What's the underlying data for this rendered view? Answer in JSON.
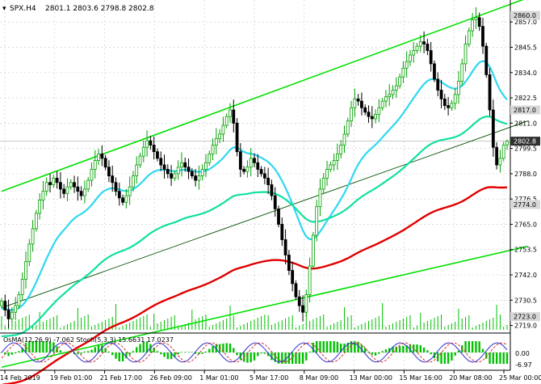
{
  "header": {
    "symbol": "SPX.H4",
    "ohlc": "2801.1 2803.6 2798.8 2802.8"
  },
  "oscillator": {
    "label": "OsMA(12,26,9) -7.062  Stoch(5,3,3) 15.6631 17.0237",
    "tick_labels": [
      "0.00",
      "-6.97"
    ]
  },
  "colors": {
    "background": "#ffffff",
    "grid": "#c8c8c8",
    "bull_candle": "#00a000",
    "bear_candle": "#000000",
    "channel_lines": "#00e000",
    "trend_line": "#005000",
    "ema_fast": "#30d8f0",
    "ema_mid": "#10e0a0",
    "ema_slow": "#e00000",
    "price_box": "#303030",
    "price_box_text": "#ffffff",
    "level_box": "#d8d8d8",
    "volume": "#00c000",
    "osma_hist": "#00c000",
    "stoch_main": "#3030d0",
    "stoch_signal": "#d03030"
  },
  "chart_data": {
    "type": "candlestick",
    "title": "SPX.H4",
    "ohlc_last": {
      "open": 2801.1,
      "high": 2803.6,
      "low": 2798.8,
      "close": 2802.8
    },
    "y_ticks": [
      2857.0,
      2845.5,
      2834.0,
      2822.5,
      2811.0,
      2799.5,
      2788.0,
      2776.5,
      2765.0,
      2753.5,
      2742.0,
      2730.5,
      2719.0
    ],
    "y_range": [
      2717.0,
      2867.0
    ],
    "x_ticks": [
      "14 Feb 2019",
      "19 Feb 01:00",
      "21 Feb 17:00",
      "26 Feb 09:00",
      "1 Mar 01:00",
      "5 Mar 17:00",
      "8 Mar 09:00",
      "13 Mar 00:00",
      "15 Mar 16:00",
      "20 Mar 08:00",
      "25 Mar 00:00"
    ],
    "price_labels": [
      {
        "value": 2860.0,
        "text": "2860.0",
        "style": "level"
      },
      {
        "value": 2817.0,
        "text": "2817.0",
        "style": "level"
      },
      {
        "value": 2802.8,
        "text": "2802.8",
        "style": "current"
      },
      {
        "value": 2774.0,
        "text": "2774.0",
        "style": "level"
      },
      {
        "value": 2723.0,
        "text": "2723.0",
        "style": "level"
      }
    ],
    "closes": [
      2730,
      2726,
      2722,
      2725,
      2728,
      2733,
      2740,
      2748,
      2756,
      2763,
      2770,
      2776,
      2780,
      2784,
      2783,
      2786,
      2784,
      2781,
      2779,
      2782,
      2784,
      2782,
      2780,
      2778,
      2781,
      2785,
      2790,
      2794,
      2797,
      2795,
      2791,
      2787,
      2784,
      2780,
      2777,
      2775,
      2778,
      2782,
      2787,
      2792,
      2796,
      2800,
      2803,
      2801,
      2798,
      2795,
      2792,
      2790,
      2788,
      2786,
      2788,
      2791,
      2793,
      2791,
      2789,
      2787,
      2785,
      2787,
      2790,
      2793,
      2797,
      2801,
      2804,
      2806,
      2810,
      2814,
      2817,
      2811,
      2798,
      2790,
      2789,
      2791,
      2795,
      2793,
      2790,
      2788,
      2786,
      2783,
      2778,
      2772,
      2765,
      2758,
      2751,
      2744,
      2738,
      2732,
      2728,
      2725,
      2733,
      2746,
      2760,
      2773,
      2781,
      2786,
      2790,
      2792,
      2794,
      2797,
      2801,
      2806,
      2812,
      2818,
      2822,
      2821,
      2818,
      2816,
      2814,
      2813,
      2815,
      2818,
      2821,
      2823,
      2824,
      2826,
      2828,
      2832,
      2836,
      2839,
      2842,
      2844,
      2846,
      2848,
      2847,
      2844,
      2838,
      2831,
      2826,
      2822,
      2819,
      2818,
      2820,
      2824,
      2830,
      2838,
      2847,
      2853,
      2858,
      2859,
      2855,
      2846,
      2833,
      2817,
      2800,
      2792,
      2795,
      2801,
      2802.8
    ],
    "channel": {
      "upper": [
        [
          0,
          2780
        ],
        [
          152,
          2868
        ]
      ],
      "lower": [
        [
          0,
          2700
        ],
        [
          152,
          2755
        ]
      ],
      "trend": [
        [
          0,
          2727
        ],
        [
          152,
          2812
        ]
      ]
    },
    "ema_fast_period": 20,
    "ema_mid_period": 60,
    "ema_slow_period": 120
  }
}
